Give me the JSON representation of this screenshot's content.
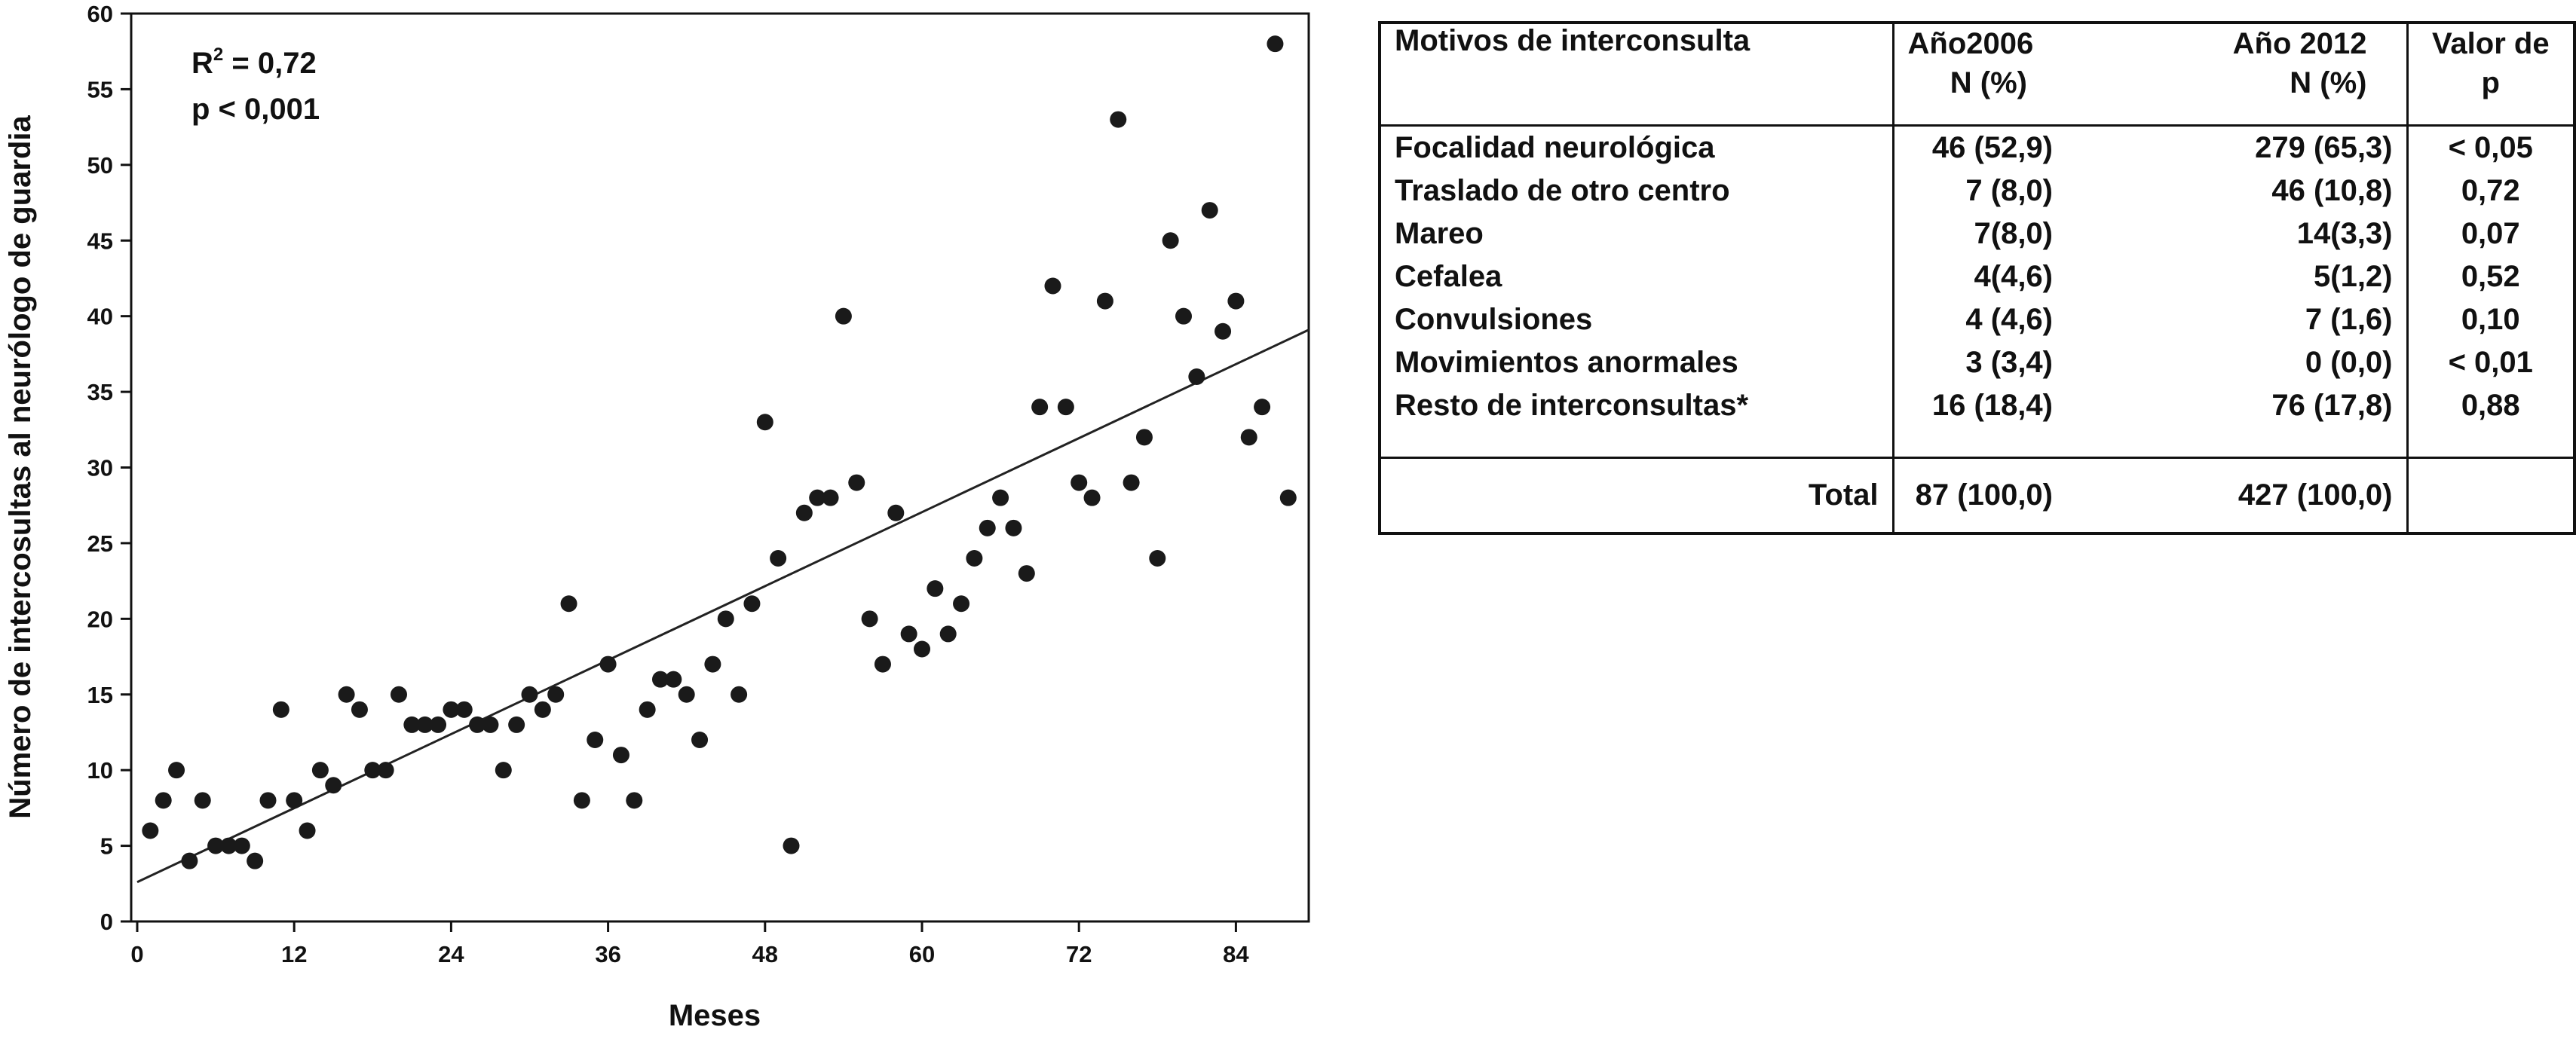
{
  "chart_data": {
    "type": "scatter",
    "ylabel": "Número de intercosultas al neurólogo de guardia",
    "xlabel": "Meses",
    "xlim": [
      0,
      89
    ],
    "ylim": [
      0,
      60
    ],
    "xticks": [
      0,
      12,
      24,
      36,
      48,
      60,
      72,
      84
    ],
    "yticks": [
      0,
      5,
      10,
      15,
      20,
      25,
      30,
      35,
      40,
      45,
      50,
      55,
      60
    ],
    "grid": false,
    "annotation": {
      "r2_base": "R",
      "r2_sup": "2",
      "r2_value": " = 0,72",
      "p_text": "p < 0,001"
    },
    "fit_line": {
      "intercept": 2.6,
      "slope": 0.4075
    },
    "points": [
      [
        1,
        6
      ],
      [
        2,
        8
      ],
      [
        3,
        10
      ],
      [
        4,
        4
      ],
      [
        5,
        8
      ],
      [
        6,
        5
      ],
      [
        7,
        5
      ],
      [
        8,
        5
      ],
      [
        9,
        4
      ],
      [
        10,
        8
      ],
      [
        11,
        14
      ],
      [
        12,
        8
      ],
      [
        13,
        6
      ],
      [
        14,
        10
      ],
      [
        15,
        9
      ],
      [
        16,
        15
      ],
      [
        17,
        14
      ],
      [
        18,
        10
      ],
      [
        19,
        10
      ],
      [
        20,
        15
      ],
      [
        21,
        13
      ],
      [
        22,
        13
      ],
      [
        23,
        13
      ],
      [
        24,
        14
      ],
      [
        25,
        14
      ],
      [
        26,
        13
      ],
      [
        27,
        13
      ],
      [
        28,
        10
      ],
      [
        29,
        13
      ],
      [
        30,
        15
      ],
      [
        31,
        14
      ],
      [
        32,
        15
      ],
      [
        33,
        21
      ],
      [
        34,
        8
      ],
      [
        35,
        12
      ],
      [
        36,
        17
      ],
      [
        37,
        11
      ],
      [
        38,
        8
      ],
      [
        39,
        14
      ],
      [
        40,
        16
      ],
      [
        41,
        16
      ],
      [
        42,
        15
      ],
      [
        43,
        12
      ],
      [
        44,
        17
      ],
      [
        45,
        20
      ],
      [
        46,
        15
      ],
      [
        47,
        21
      ],
      [
        48,
        33
      ],
      [
        49,
        24
      ],
      [
        50,
        5
      ],
      [
        51,
        27
      ],
      [
        52,
        28
      ],
      [
        53,
        28
      ],
      [
        54,
        40
      ],
      [
        55,
        29
      ],
      [
        56,
        20
      ],
      [
        57,
        17
      ],
      [
        58,
        27
      ],
      [
        59,
        19
      ],
      [
        60,
        18
      ],
      [
        61,
        22
      ],
      [
        62,
        19
      ],
      [
        63,
        21
      ],
      [
        64,
        24
      ],
      [
        65,
        26
      ],
      [
        66,
        28
      ],
      [
        67,
        26
      ],
      [
        68,
        23
      ],
      [
        69,
        34
      ],
      [
        70,
        42
      ],
      [
        71,
        34
      ],
      [
        72,
        29
      ],
      [
        73,
        28
      ],
      [
        74,
        41
      ],
      [
        75,
        53
      ],
      [
        76,
        29
      ],
      [
        77,
        32
      ],
      [
        78,
        24
      ],
      [
        79,
        45
      ],
      [
        80,
        40
      ],
      [
        81,
        36
      ],
      [
        82,
        47
      ],
      [
        83,
        39
      ],
      [
        84,
        41
      ],
      [
        85,
        32
      ],
      [
        86,
        34
      ],
      [
        87,
        58
      ],
      [
        88,
        28
      ]
    ]
  },
  "table": {
    "headers": {
      "motivos": "Motivos de interconsulta",
      "y2006_l1": "Año2006",
      "y2006_l2": "N (%)",
      "y2012_l1": "Año 2012",
      "y2012_l2": "N (%)",
      "p_l1": "Valor de",
      "p_l2": "p"
    },
    "rows": [
      {
        "label": "Focalidad neurológica",
        "y2006": "46 (52,9)",
        "y2012": "279 (65,3)",
        "p": "< 0,05"
      },
      {
        "label": "Traslado de otro centro",
        "y2006": "7 (8,0)",
        "y2012": "46 (10,8)",
        "p": "0,72"
      },
      {
        "label": "Mareo",
        "y2006": "7(8,0)",
        "y2012": "14(3,3)",
        "p": "0,07"
      },
      {
        "label": "Cefalea",
        "y2006": "4(4,6)",
        "y2012": "5(1,2)",
        "p": "0,52"
      },
      {
        "label": "Convulsiones",
        "y2006": "4 (4,6)",
        "y2012": "7 (1,6)",
        "p": "0,10"
      },
      {
        "label": "Movimientos anormales",
        "y2006": "3 (3,4)",
        "y2012": "0 (0,0)",
        "p": "< 0,01"
      },
      {
        "label": "Resto de interconsultas*",
        "y2006": "16 (18,4)",
        "y2012": "76 (17,8)",
        "p": "0,88"
      }
    ],
    "total": {
      "label": "Total",
      "y2006": "87 (100,0)",
      "y2012": "427 (100,0)",
      "p": ""
    }
  }
}
